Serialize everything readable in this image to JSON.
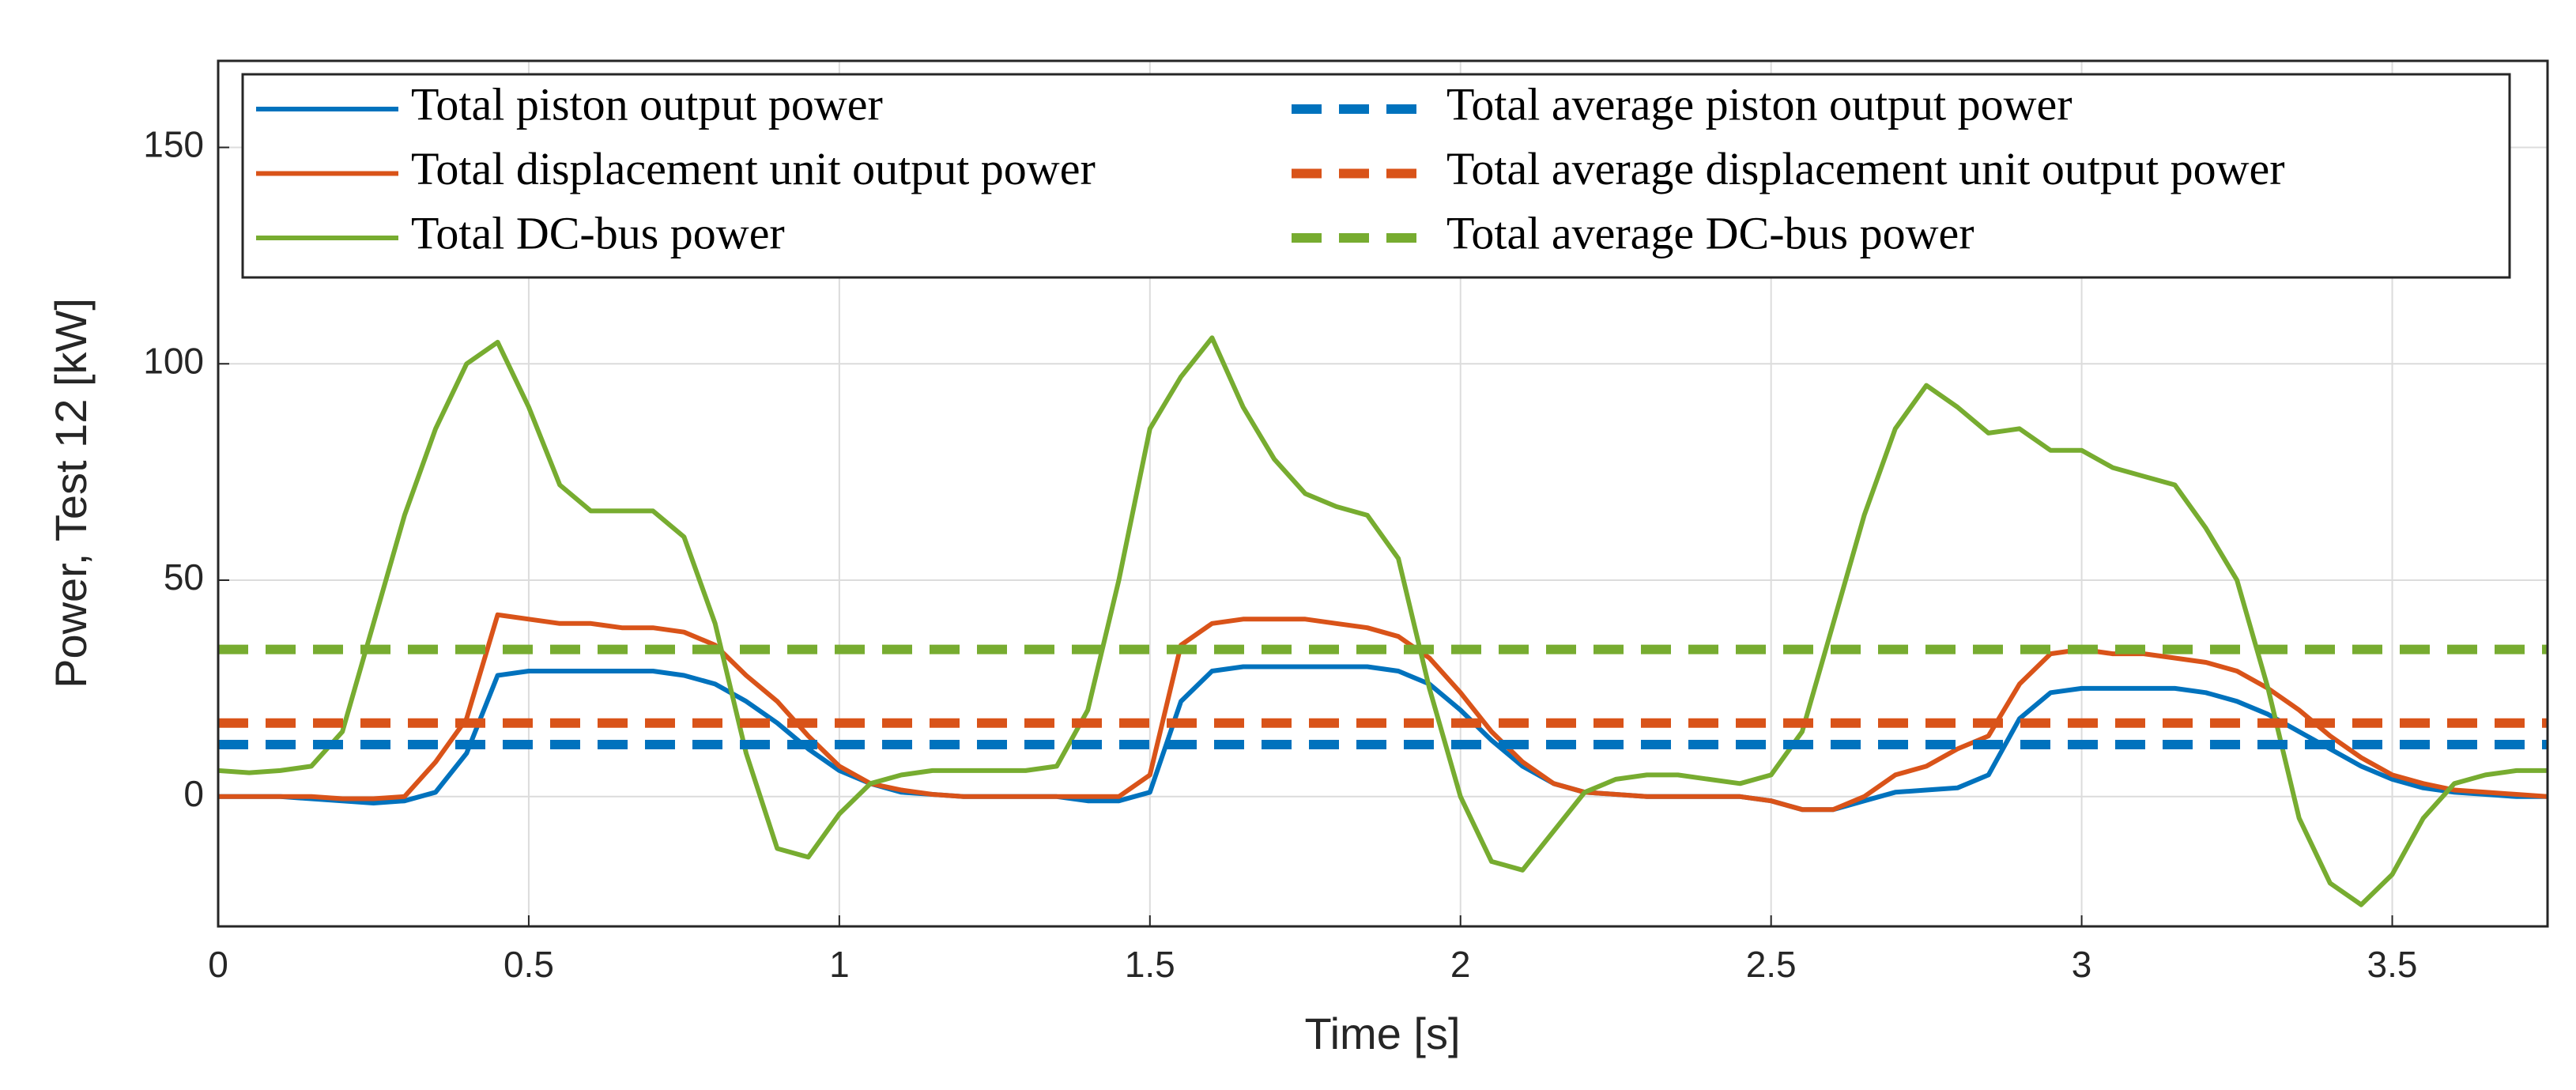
{
  "chart_data": {
    "type": "line",
    "xlabel": "Time [s]",
    "ylabel": "Power, Test 12 [kW]",
    "x": [
      0,
      0.05,
      0.1,
      0.15,
      0.2,
      0.25,
      0.3,
      0.35,
      0.4,
      0.45,
      0.5,
      0.55,
      0.6,
      0.65,
      0.7,
      0.75,
      0.8,
      0.85,
      0.9,
      0.95,
      1.0,
      1.05,
      1.1,
      1.15,
      1.2,
      1.25,
      1.3,
      1.35,
      1.4,
      1.45,
      1.5,
      1.55,
      1.6,
      1.65,
      1.7,
      1.75,
      1.8,
      1.85,
      1.9,
      1.95,
      2.0,
      2.05,
      2.1,
      2.15,
      2.2,
      2.25,
      2.3,
      2.35,
      2.4,
      2.45,
      2.5,
      2.55,
      2.6,
      2.65,
      2.7,
      2.75,
      2.8,
      2.85,
      2.9,
      2.95,
      3.0,
      3.05,
      3.1,
      3.15,
      3.2,
      3.25,
      3.3,
      3.35,
      3.4,
      3.45,
      3.5,
      3.55,
      3.6,
      3.65,
      3.7,
      3.75
    ],
    "series": [
      {
        "name": "Total piston output power",
        "color": "#0072bd",
        "dashed": false,
        "values": [
          0,
          0,
          0,
          -0.5,
          -1,
          -1.5,
          -1,
          1,
          10,
          28,
          29,
          29,
          29,
          29,
          29,
          28,
          26,
          22,
          17,
          11,
          6,
          3,
          1,
          0.5,
          0,
          0,
          0,
          0,
          -1,
          -1,
          1,
          22,
          29,
          30,
          30,
          30,
          30,
          30,
          29,
          26,
          20,
          13,
          7,
          3,
          1,
          0.5,
          0,
          0,
          0,
          0,
          -1,
          -3,
          -3,
          -1,
          1,
          1.5,
          2,
          5,
          18,
          24,
          25,
          25,
          25,
          25,
          24,
          22,
          19,
          15,
          11,
          7,
          4,
          2,
          1,
          0.5,
          0,
          0
        ]
      },
      {
        "name": "Total displacement unit output power",
        "color": "#d95319",
        "dashed": false,
        "values": [
          0,
          0,
          0,
          0,
          -0.5,
          -0.5,
          0,
          8,
          18,
          42,
          41,
          40,
          40,
          39,
          39,
          38,
          35,
          28,
          22,
          14,
          7,
          3,
          1.5,
          0.5,
          0,
          0,
          0,
          0,
          0,
          0,
          5,
          35,
          40,
          41,
          41,
          41,
          40,
          39,
          37,
          32,
          24,
          15,
          8,
          3,
          1,
          0.5,
          0,
          0,
          0,
          0,
          -1,
          -3,
          -3,
          0,
          5,
          7,
          11,
          14,
          26,
          33,
          34,
          33,
          33,
          32,
          31,
          29,
          25,
          20,
          14,
          9,
          5,
          3,
          1.5,
          1,
          0.5,
          0
        ]
      },
      {
        "name": "Total DC-bus power",
        "color": "#77ac30",
        "dashed": false,
        "values": [
          6,
          5.5,
          6,
          7,
          15,
          40,
          65,
          85,
          100,
          105,
          90,
          72,
          66,
          66,
          66,
          60,
          40,
          10,
          -12,
          -14,
          -4,
          3,
          5,
          6,
          6,
          6,
          6,
          7,
          20,
          50,
          85,
          97,
          106,
          90,
          78,
          70,
          67,
          65,
          55,
          25,
          0,
          -15,
          -17,
          -8,
          1,
          4,
          5,
          5,
          4,
          3,
          5,
          15,
          40,
          65,
          85,
          95,
          90,
          84,
          85,
          80,
          80,
          76,
          74,
          72,
          62,
          50,
          25,
          -5,
          -20,
          -25,
          -18,
          -5,
          3,
          5,
          6,
          6
        ]
      },
      {
        "name": "Total average piston output power",
        "color": "#0072bd",
        "dashed": true,
        "x": [
          0,
          3.75
        ],
        "values": [
          12,
          12
        ]
      },
      {
        "name": "Total average displacement unit output power",
        "color": "#d95319",
        "dashed": true,
        "x": [
          0,
          3.75
        ],
        "values": [
          17,
          17
        ]
      },
      {
        "name": "Total average DC-bus power",
        "color": "#77ac30",
        "dashed": true,
        "x": [
          0,
          3.75
        ],
        "values": [
          34,
          34
        ]
      }
    ],
    "xlim": [
      0,
      3.75
    ],
    "ylim": [
      -30,
      170
    ],
    "xticks": [
      0,
      0.5,
      1,
      1.5,
      2,
      2.5,
      3,
      3.5
    ],
    "yticks": [
      0,
      50,
      100,
      150
    ],
    "grid": true,
    "legend": "top"
  }
}
